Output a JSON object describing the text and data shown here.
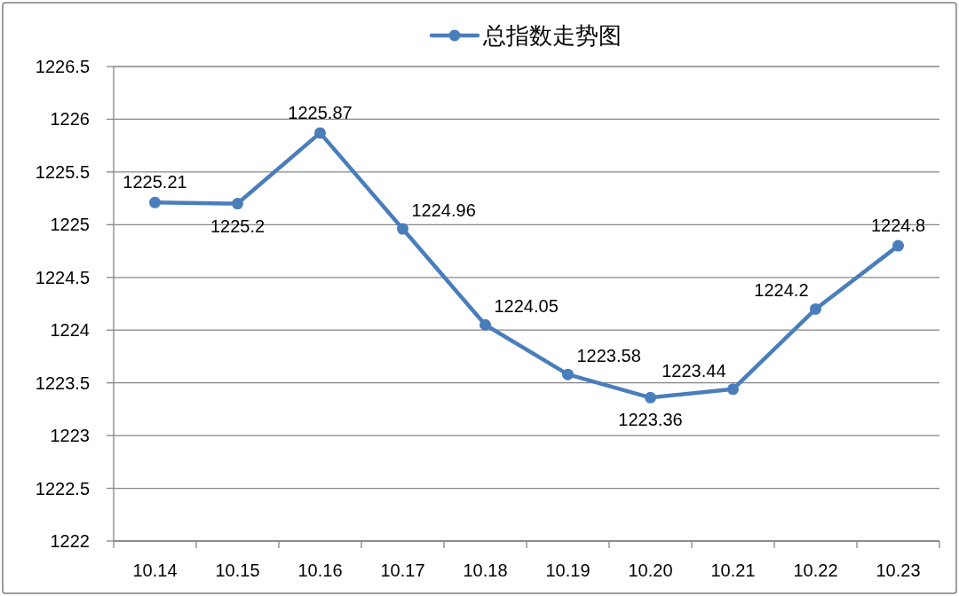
{
  "chart_data": {
    "type": "line",
    "categories": [
      "10.14",
      "10.15",
      "10.16",
      "10.17",
      "10.18",
      "10.19",
      "10.20",
      "10.21",
      "10.22",
      "10.23"
    ],
    "series": [
      {
        "name": "总指数走势图",
        "color": "#4a7ebb",
        "values": [
          1225.21,
          1225.2,
          1225.87,
          1224.96,
          1224.05,
          1223.58,
          1223.36,
          1223.44,
          1224.2,
          1224.8
        ]
      }
    ],
    "ylim": [
      1222,
      1226.5
    ],
    "yticks": [
      1222,
      1222.5,
      1223,
      1223.5,
      1224,
      1224.5,
      1225,
      1225.5,
      1226,
      1226.5
    ],
    "grid": "y",
    "legend": "top",
    "marker": "circle",
    "line_style": "solid",
    "data_labels": true
  }
}
